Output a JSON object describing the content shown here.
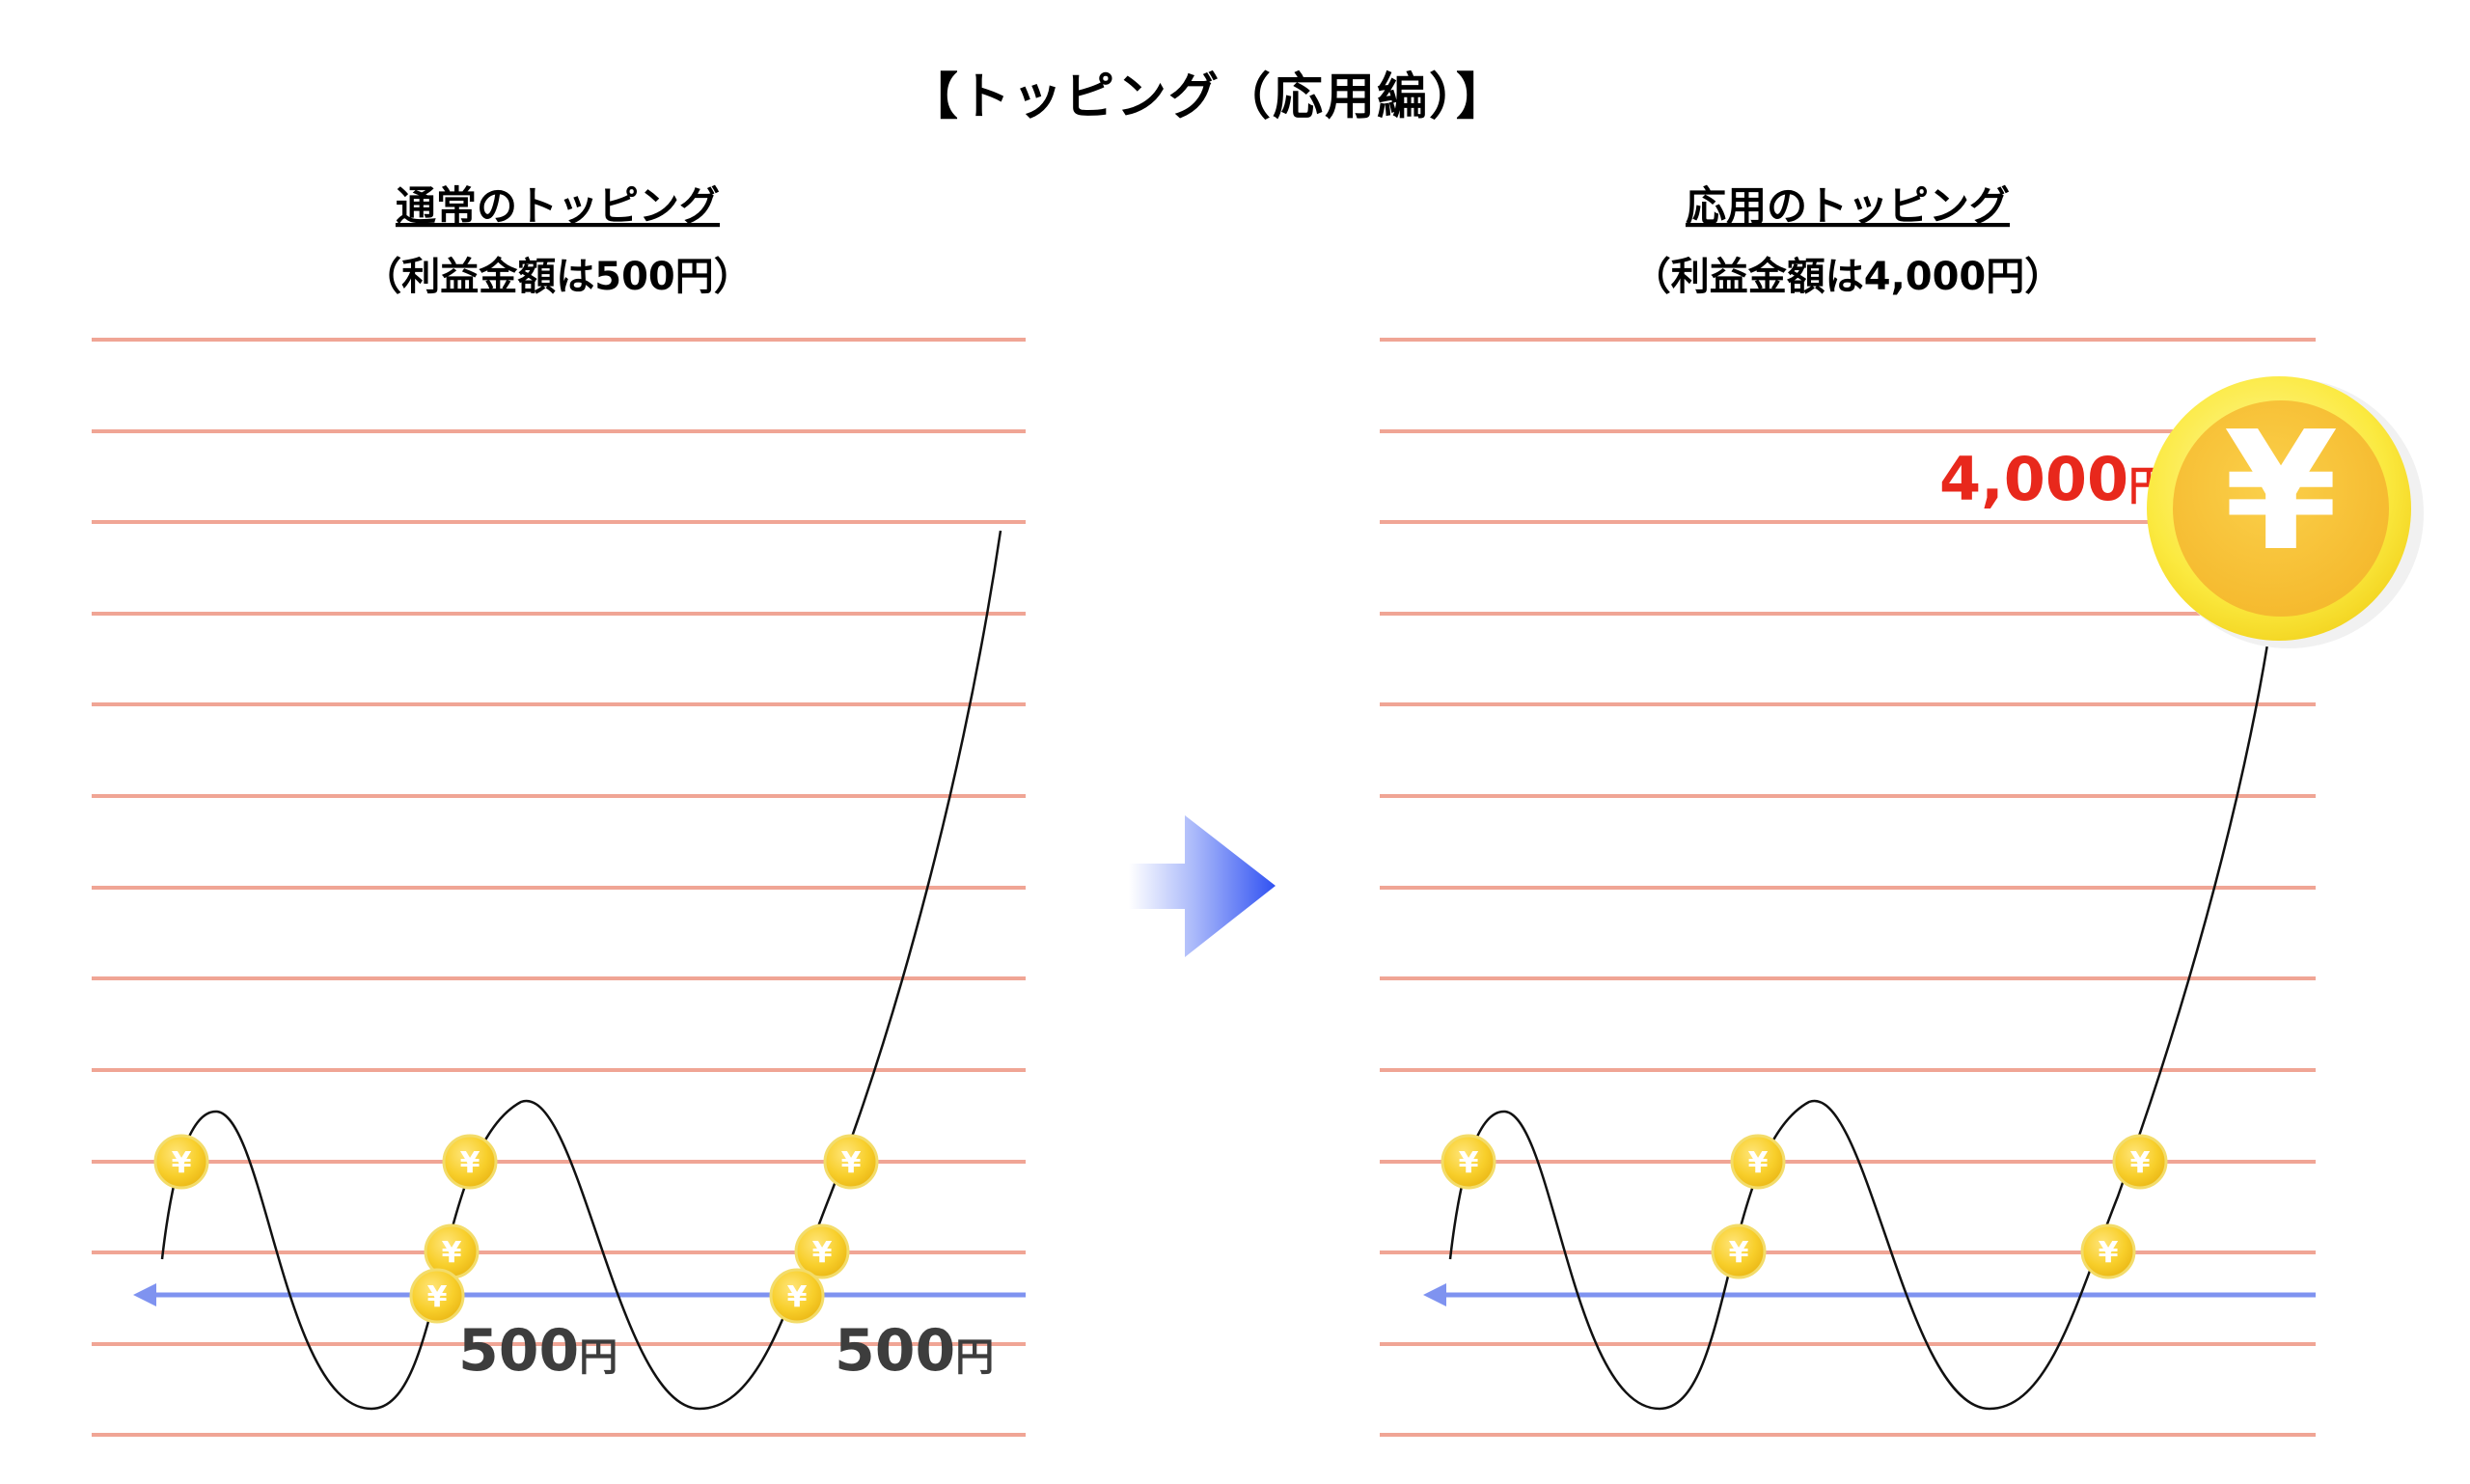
{
  "title": "【トッピング（応用編）】",
  "left_panel": {
    "heading": "通常のトッピング",
    "note": "（利益金額は500円）",
    "profits": [
      {
        "value": "500",
        "unit": "円"
      },
      {
        "value": "500",
        "unit": "円"
      }
    ]
  },
  "right_panel": {
    "heading": "応用のトッピング",
    "note": "（利益金額は4,000円）",
    "profit": {
      "value": "4,000",
      "unit": "円"
    }
  },
  "coin_symbol": "¥",
  "colors": {
    "grid_line": "#f0a595",
    "price_line": "#111111",
    "axis_arrow": "#7f93f0",
    "coin": "#f6cd2a",
    "big_amount": "#e8281c",
    "center_arrow": "#3b5cf5"
  },
  "icons": [
    "coin-yen-icon",
    "arrow-right-icon",
    "arrow-left-icon"
  ]
}
